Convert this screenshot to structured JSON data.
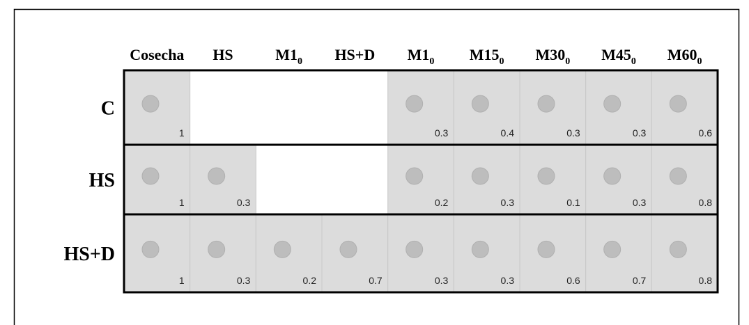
{
  "columns": [
    "Cosecha",
    "HS",
    {
      "main": "M1",
      "sub": "0"
    },
    "HS+D",
    {
      "main": "M1",
      "sub": "0"
    },
    {
      "main": "M15",
      "sub": "0"
    },
    {
      "main": "M30",
      "sub": "0"
    },
    {
      "main": "M45",
      "sub": "0"
    },
    {
      "main": "M60",
      "sub": "0"
    }
  ],
  "rows": [
    {
      "label": "C",
      "cells": [
        1,
        null,
        null,
        null,
        0.3,
        0.4,
        0.3,
        0.3,
        0.6
      ]
    },
    {
      "label": "HS",
      "cells": [
        1,
        0.3,
        null,
        null,
        0.2,
        0.3,
        0.1,
        0.3,
        0.8
      ]
    },
    {
      "label": "HS+D",
      "cells": [
        1,
        0.3,
        0.2,
        0.7,
        0.3,
        0.3,
        0.6,
        0.7,
        0.8
      ]
    }
  ]
}
